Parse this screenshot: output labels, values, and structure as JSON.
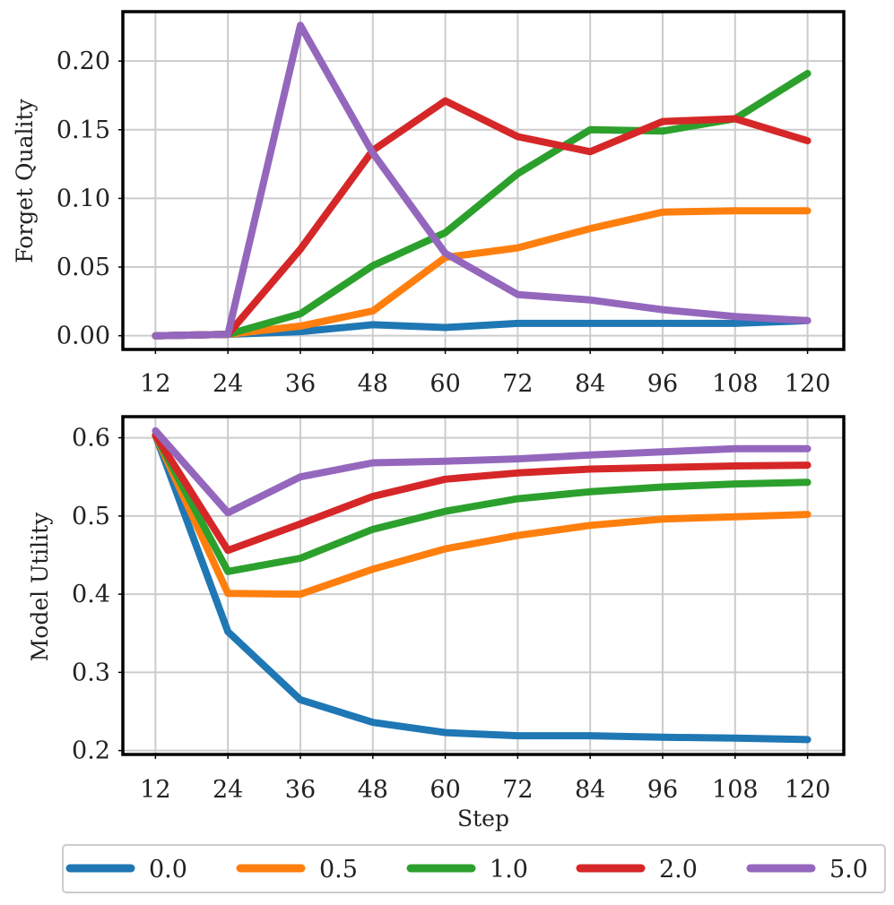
{
  "chart_data": [
    {
      "type": "line",
      "name": "forget-quality",
      "title": "",
      "xlabel": "",
      "ylabel": "Forget Quality",
      "x": [
        12,
        24,
        36,
        48,
        60,
        72,
        84,
        96,
        108,
        120
      ],
      "xtick_labels": [
        "12",
        "24",
        "36",
        "48",
        "60",
        "72",
        "84",
        "96",
        "108",
        "120"
      ],
      "ylim": [
        -0.01,
        0.236
      ],
      "yticks": [
        0.0,
        0.05,
        0.1,
        0.15,
        0.2
      ],
      "ytick_labels": [
        "0.00",
        "0.05",
        "0.10",
        "0.15",
        "0.20"
      ],
      "grid": true,
      "series": [
        {
          "name": "0.0",
          "color": "#1f77b4",
          "values": [
            0.0,
            0.001,
            0.003,
            0.008,
            0.006,
            0.009,
            0.009,
            0.009,
            0.009,
            0.011
          ]
        },
        {
          "name": "0.5",
          "color": "#ff7f0e",
          "values": [
            0.0,
            0.001,
            0.007,
            0.018,
            0.057,
            0.064,
            0.078,
            0.09,
            0.091,
            0.091
          ]
        },
        {
          "name": "1.0",
          "color": "#2ca02c",
          "values": [
            0.0,
            0.001,
            0.016,
            0.051,
            0.075,
            0.118,
            0.15,
            0.149,
            0.158,
            0.191
          ]
        },
        {
          "name": "2.0",
          "color": "#d62728",
          "values": [
            0.0,
            0.001,
            0.063,
            0.135,
            0.171,
            0.145,
            0.134,
            0.156,
            0.158,
            0.142
          ]
        },
        {
          "name": "5.0",
          "color": "#9467bd",
          "values": [
            0.0,
            0.001,
            0.226,
            0.133,
            0.06,
            0.03,
            0.026,
            0.019,
            0.014,
            0.011
          ]
        }
      ]
    },
    {
      "type": "line",
      "name": "model-utility",
      "title": "",
      "xlabel": "Step",
      "ylabel": "Model Utility",
      "x": [
        12,
        24,
        36,
        48,
        60,
        72,
        84,
        96,
        108,
        120
      ],
      "xtick_labels": [
        "12",
        "24",
        "36",
        "48",
        "60",
        "72",
        "84",
        "96",
        "108",
        "120"
      ],
      "ylim": [
        0.195,
        0.627
      ],
      "yticks": [
        0.2,
        0.3,
        0.4,
        0.5,
        0.6
      ],
      "ytick_labels": [
        "0.2",
        "0.3",
        "0.4",
        "0.5",
        "0.6"
      ],
      "grid": true,
      "series": [
        {
          "name": "0.0",
          "color": "#1f77b4",
          "values": [
            0.603,
            0.352,
            0.265,
            0.236,
            0.223,
            0.219,
            0.219,
            0.217,
            0.216,
            0.214
          ]
        },
        {
          "name": "0.5",
          "color": "#ff7f0e",
          "values": [
            0.603,
            0.401,
            0.4,
            0.432,
            0.458,
            0.475,
            0.488,
            0.496,
            0.499,
            0.502
          ]
        },
        {
          "name": "1.0",
          "color": "#2ca02c",
          "values": [
            0.603,
            0.429,
            0.446,
            0.483,
            0.506,
            0.522,
            0.531,
            0.537,
            0.541,
            0.543
          ]
        },
        {
          "name": "2.0",
          "color": "#d62728",
          "values": [
            0.603,
            0.456,
            0.49,
            0.525,
            0.547,
            0.555,
            0.56,
            0.562,
            0.564,
            0.565
          ]
        },
        {
          "name": "5.0",
          "color": "#9467bd",
          "values": [
            0.609,
            0.504,
            0.55,
            0.568,
            0.57,
            0.573,
            0.578,
            0.582,
            0.586,
            0.586
          ]
        }
      ]
    }
  ],
  "legend": {
    "placement": "bottom-center",
    "entries": [
      {
        "label": "0.0",
        "color": "#1f77b4"
      },
      {
        "label": "0.5",
        "color": "#ff7f0e"
      },
      {
        "label": "1.0",
        "color": "#2ca02c"
      },
      {
        "label": "2.0",
        "color": "#d62728"
      },
      {
        "label": "5.0",
        "color": "#9467bd"
      }
    ]
  }
}
